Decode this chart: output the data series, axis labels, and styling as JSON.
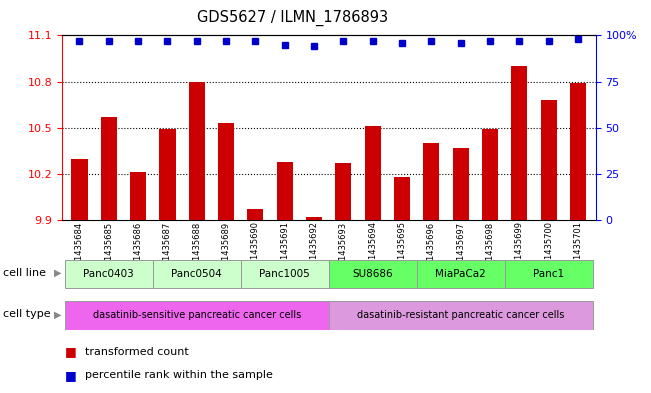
{
  "title": "GDS5627 / ILMN_1786893",
  "samples": [
    "GSM1435684",
    "GSM1435685",
    "GSM1435686",
    "GSM1435687",
    "GSM1435688",
    "GSM1435689",
    "GSM1435690",
    "GSM1435691",
    "GSM1435692",
    "GSM1435693",
    "GSM1435694",
    "GSM1435695",
    "GSM1435696",
    "GSM1435697",
    "GSM1435698",
    "GSM1435699",
    "GSM1435700",
    "GSM1435701"
  ],
  "bar_values": [
    10.3,
    10.57,
    10.21,
    10.49,
    10.8,
    10.53,
    9.97,
    10.28,
    9.92,
    10.27,
    10.51,
    10.18,
    10.4,
    10.37,
    10.49,
    10.9,
    10.68,
    10.79
  ],
  "percentile_values": [
    97,
    97,
    97,
    97,
    97,
    97,
    97,
    95,
    94,
    97,
    97,
    96,
    97,
    96,
    97,
    97,
    97,
    98
  ],
  "ymin": 9.9,
  "ymax": 11.1,
  "ylim_right": [
    0,
    100
  ],
  "yticks_left": [
    9.9,
    10.2,
    10.5,
    10.8,
    11.1
  ],
  "yticks_right": [
    0,
    25,
    50,
    75,
    100
  ],
  "bar_color": "#cc0000",
  "dot_color": "#0000cc",
  "cell_lines": [
    {
      "label": "Panc0403",
      "start": 0,
      "end": 3,
      "color": "#ccffcc"
    },
    {
      "label": "Panc0504",
      "start": 3,
      "end": 6,
      "color": "#ccffcc"
    },
    {
      "label": "Panc1005",
      "start": 6,
      "end": 9,
      "color": "#ccffcc"
    },
    {
      "label": "SU8686",
      "start": 9,
      "end": 12,
      "color": "#66ff66"
    },
    {
      "label": "MiaPaCa2",
      "start": 12,
      "end": 15,
      "color": "#66ff66"
    },
    {
      "label": "Panc1",
      "start": 15,
      "end": 18,
      "color": "#66ff66"
    }
  ],
  "cell_types": [
    {
      "label": "dasatinib-sensitive pancreatic cancer cells",
      "start": 0,
      "end": 9,
      "color": "#ee66ee"
    },
    {
      "label": "dasatinib-resistant pancreatic cancer cells",
      "start": 9,
      "end": 18,
      "color": "#dd99dd"
    }
  ],
  "legend_bar_label": "transformed count",
  "legend_dot_label": "percentile rank within the sample",
  "cell_line_label": "cell line",
  "cell_type_label": "cell type",
  "bg_color": "#f0f0f0"
}
